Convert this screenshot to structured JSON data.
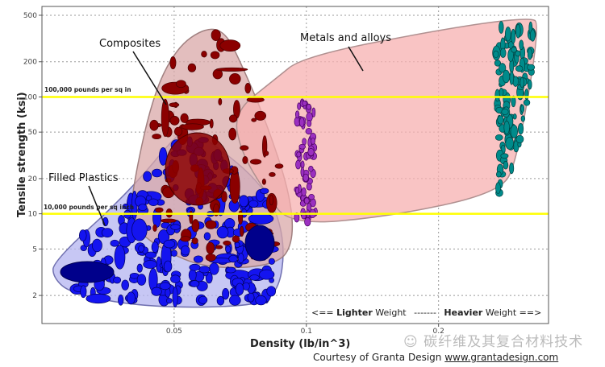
{
  "chart_data": {
    "type": "scatter",
    "xlabel": "Density (lb/in^3)",
    "ylabel": "Tensile strength (ksi)",
    "xscale": "log",
    "yscale": "log",
    "xlim": [
      0.025,
      0.356
    ],
    "ylim": [
      1.15,
      595
    ],
    "xticks": [
      0.05,
      0.1,
      0.2
    ],
    "xtick_labels": [
      "0.05",
      "0.1",
      "0.2"
    ],
    "yticks": [
      2,
      5,
      10,
      20,
      50,
      100,
      200,
      500
    ],
    "ytick_labels": [
      "2",
      "5",
      "10",
      "20",
      "50",
      "100",
      "200",
      "500"
    ],
    "grid": true,
    "reference_lines": [
      {
        "y": 100,
        "label": "100,000 pounds per sq in",
        "color": "#ffff00"
      },
      {
        "y": 10,
        "label": "10,000 pounds per sq inch",
        "color": "#ffff00"
      }
    ],
    "regions": [
      {
        "name": "Filled Plastics",
        "fill": "#b4b4f0",
        "stroke": "#7070b0",
        "hull": [
          [
            0.0265,
            3.92
          ],
          [
            0.0393,
            15.1
          ],
          [
            0.0517,
            52.1
          ],
          [
            0.0551,
            53.8
          ],
          [
            0.0808,
            17.7
          ],
          [
            0.0899,
            5.83
          ],
          [
            0.0861,
            1.92
          ],
          [
            0.0711,
            1.59
          ],
          [
            0.0427,
            1.59
          ],
          [
            0.0291,
            2.07
          ],
          [
            0.0265,
            2.85
          ]
        ]
      },
      {
        "name": "Composites",
        "fill": "#d9a8a8",
        "stroke": "#a08080",
        "hull": [
          [
            0.04,
            15.1
          ],
          [
            0.0446,
            101
          ],
          [
            0.0506,
            263
          ],
          [
            0.0588,
            392
          ],
          [
            0.0654,
            362
          ],
          [
            0.0711,
            192
          ],
          [
            0.0808,
            63
          ],
          [
            0.0917,
            15.1
          ],
          [
            0.0937,
            5.83
          ],
          [
            0.0861,
            3.62
          ],
          [
            0.06,
            3.35
          ],
          [
            0.0465,
            4.97
          ],
          [
            0.04,
            8.0
          ]
        ]
      },
      {
        "name": "Metals and alloys",
        "fill": "#f7b0b0",
        "stroke": "#b09090",
        "hull": [
          [
            0.0682,
            73.9
          ],
          [
            0.0843,
            139
          ],
          [
            0.0986,
            224
          ],
          [
            0.214,
            392
          ],
          [
            0.322,
            480
          ],
          [
            0.341,
            424
          ],
          [
            0.302,
            28.5
          ],
          [
            0.276,
            15.1
          ],
          [
            0.153,
            9.4
          ],
          [
            0.0917,
            8.0
          ],
          [
            0.0808,
            15.1
          ],
          [
            0.0711,
            33.4
          ]
        ]
      }
    ],
    "series": [
      {
        "group": "Filled Plastics",
        "color": "#1414f0",
        "edge": "#000060",
        "x_range": [
          0.03,
          0.085
        ],
        "y_range": [
          1.8,
          45
        ]
      },
      {
        "group": "Composites",
        "color": "#8b0000",
        "edge": "#4a0000",
        "x_range": [
          0.045,
          0.09
        ],
        "y_range": [
          3.5,
          350
        ]
      },
      {
        "group": "Metals and alloys",
        "color": "#9b30c0",
        "edge": "#4a0060",
        "x_range": [
          0.095,
          0.105
        ],
        "y_range": [
          8,
          90
        ]
      },
      {
        "group": "Metals and alloys",
        "color": "#008b8b",
        "edge": "#004040",
        "x_range": [
          0.27,
          0.33
        ],
        "y_range": [
          12,
          400
        ]
      }
    ],
    "annotations": [
      "Composites",
      "Filled Plastics",
      "Metals and alloys"
    ],
    "weight_note": {
      "lighter_prefix": "<==",
      "lighter_bold": "Lighter",
      "lighter_suffix": "Weight",
      "dashes": "-------",
      "heavier_bold": "Heavier",
      "heavier_suffix": "Weight ==>"
    }
  },
  "credit": {
    "text": "Courtesy of Granta Design",
    "link": "www.grantadesign.com"
  },
  "watermark": "碳纤维及其复合材料技术"
}
